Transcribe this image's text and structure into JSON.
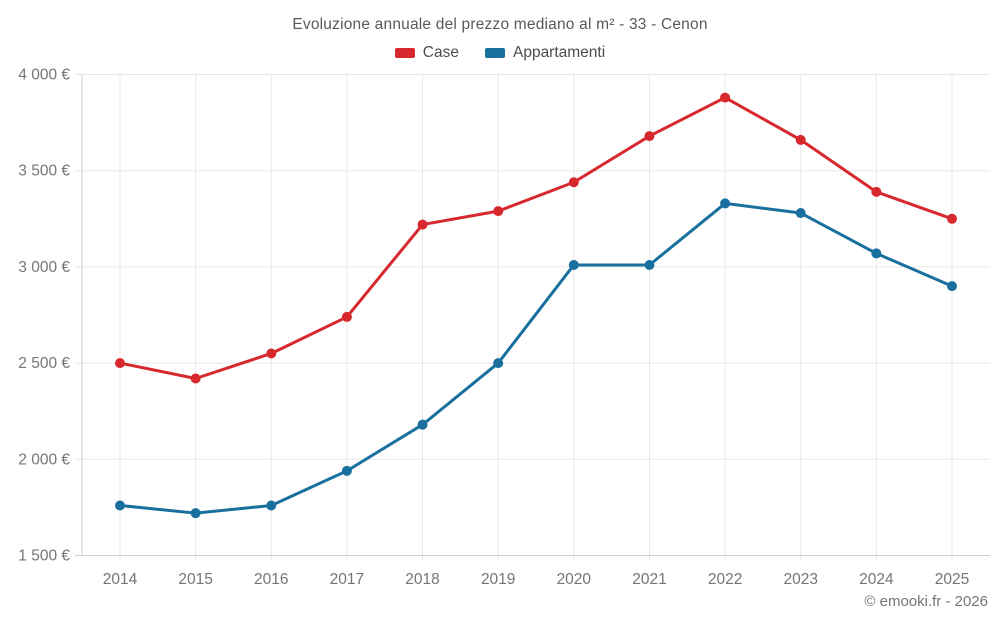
{
  "chart": {
    "title": "Evoluzione annuale del prezzo mediano al m² - 33 - Cenon",
    "footer": "© emooki.fr - 2026"
  },
  "chart_data": {
    "type": "line",
    "title": "Evoluzione annuale del prezzo mediano al m² - 33 - Cenon",
    "categories": [
      "2014",
      "2015",
      "2016",
      "2017",
      "2018",
      "2019",
      "2020",
      "2021",
      "2022",
      "2023",
      "2024",
      "2025"
    ],
    "series": [
      {
        "name": "Case",
        "color": "#d7282e",
        "values": [
          2500,
          2420,
          2550,
          2740,
          3220,
          3290,
          3440,
          3680,
          3880,
          3660,
          3390,
          3250
        ]
      },
      {
        "name": "Appartamenti",
        "color": "#19709e",
        "values": [
          1760,
          1720,
          1760,
          1940,
          2180,
          2500,
          3010,
          3010,
          3330,
          3280,
          3070,
          2900
        ]
      }
    ],
    "xlabel": "",
    "ylabel": "",
    "ylim": [
      1500,
      4000
    ],
    "y_ticks": [
      {
        "value": 4000,
        "label": "4 000 €"
      },
      {
        "value": 3500,
        "label": "3 500 €"
      },
      {
        "value": 3000,
        "label": "3 000 €"
      },
      {
        "value": 2500,
        "label": "2 500 €"
      },
      {
        "value": 2000,
        "label": "2 000 €"
      },
      {
        "value": 1500,
        "label": "1 500 €"
      }
    ],
    "grid": true,
    "legend_position": "top",
    "point_radius": 5,
    "line_width": 3
  },
  "colors": {
    "grid": "#e7e7e7",
    "axis": "#cfcfcf",
    "tick_text": "#757575",
    "title_text": "#595959"
  }
}
